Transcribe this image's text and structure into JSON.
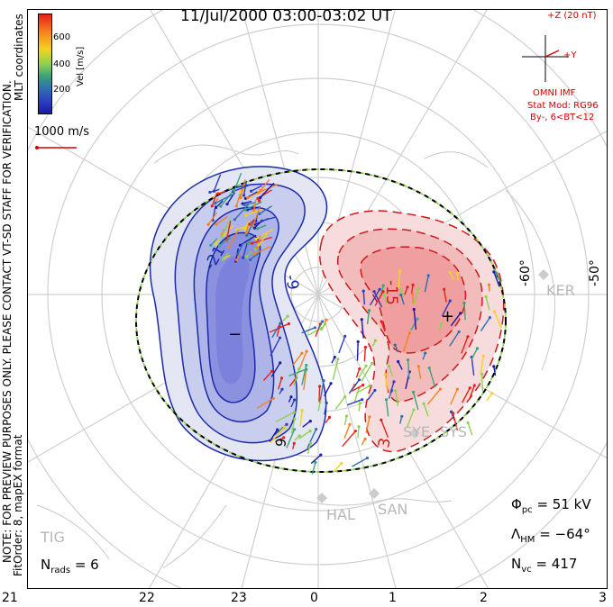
{
  "title": "11/Jul/2000 03:00-03:02 UT",
  "side_notes": {
    "mlt_coordinates": "MLT coordinates",
    "preview_note": "NOTE: FOR PREVIEW PURPOSES ONLY. PLEASE CONTACT VT-SD STAFF FOR VERIFICATION.",
    "fit_order": "FitOrder: 8, mapEX format"
  },
  "colorbar": {
    "label": "Vel [m/s]",
    "ticks": [
      "600",
      "400",
      "200"
    ],
    "colors": [
      "#e8201a",
      "#f5821f",
      "#f4d21e",
      "#8fd14f",
      "#3aa37a",
      "#2f6fb0",
      "#2b3fbf",
      "#1a1aa8"
    ]
  },
  "scale_label": "1000 m/s",
  "imf": {
    "z_label": "+Z (20 nT)",
    "y_label": "+Y",
    "source": "OMNI IMF",
    "model": "Stat Mod: RG96",
    "condition": "By-, 6<BT<12"
  },
  "contour_labels": [
    "-9",
    "-21",
    "-15",
    "3",
    "9",
    "-3"
  ],
  "extrema": {
    "min_marker": "−",
    "max_marker": "+"
  },
  "latitude_labels": [
    "-60°",
    "-50°"
  ],
  "stations": [
    "KER",
    "SYE",
    "SYS",
    "HAL",
    "SAN",
    "TIG"
  ],
  "stats": {
    "phi_symbol": "Φ",
    "phi_sub": "pc",
    "phi_value": "= 51 kV",
    "lambda_symbol": "Λ",
    "lambda_sub": "HM",
    "lambda_value": "= −64°",
    "nvc_symbol": "N",
    "nvc_sub": "vc",
    "nvc_value": "= 417",
    "nrads_symbol": "N",
    "nrads_sub": "rads",
    "nrads_value": "= 6"
  },
  "mlt_ticks": [
    "21",
    "22",
    "23",
    "0",
    "1",
    "2",
    "3"
  ]
}
